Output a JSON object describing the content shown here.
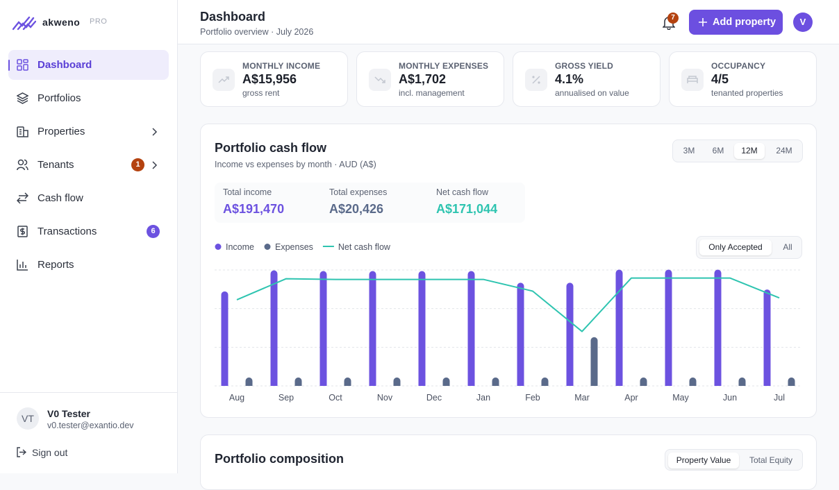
{
  "sidebar": {
    "brand": "akweno",
    "badge": "PRO",
    "nav": [
      {
        "label": "Dashboard"
      },
      {
        "label": "Portfolios"
      },
      {
        "label": "Properties"
      },
      {
        "label": "Tenants",
        "count": 1
      },
      {
        "label": "Cash flow"
      },
      {
        "label": "Transactions",
        "count": 6
      },
      {
        "label": "Reports"
      }
    ],
    "user": {
      "initials": "VT",
      "name": "V0 Tester",
      "email": "v0.tester@exantio.dev"
    },
    "sign_out": "Sign out"
  },
  "header": {
    "title": "Dashboard",
    "subtitle": "Portfolio overview · July 2026",
    "notifications": 7,
    "add_button": "Add property",
    "avatar": "V"
  },
  "stats": [
    {
      "label": "MONTHLY INCOME",
      "value": "A$15,956",
      "note": "gross rent"
    },
    {
      "label": "MONTHLY EXPENSES",
      "value": "A$1,702",
      "note": "incl. management"
    },
    {
      "label": "GROSS YIELD",
      "value": "4.1%",
      "note": "annualised on value"
    },
    {
      "label": "OCCUPANCY",
      "value": "4/5",
      "note": "tenanted properties"
    }
  ],
  "cash_flow": {
    "title": "Portfolio cash flow",
    "subtitle": "Income vs expenses by month · AUD (A$)",
    "ranges": [
      "3M",
      "6M",
      "12M",
      "24M"
    ],
    "totals": [
      {
        "label": "Total income",
        "value": "A$191,470"
      },
      {
        "label": "Total expenses",
        "value": "A$20,426"
      },
      {
        "label": "Net cash flow",
        "value": "A$171,044"
      }
    ],
    "filters": [
      "Only Accepted",
      "All"
    ]
  },
  "chart_data": {
    "type": "bar",
    "categories": [
      "Aug",
      "Sep",
      "Oct",
      "Nov",
      "Dec",
      "Jan",
      "Feb",
      "Mar",
      "Apr",
      "May",
      "Jun",
      "Jul"
    ],
    "series": [
      {
        "name": "Income",
        "color": "#6c52e0",
        "values": [
          13700,
          16750,
          16650,
          16650,
          16650,
          16650,
          14950,
          14950,
          16850,
          16850,
          16850,
          13970
        ]
      },
      {
        "name": "Expenses",
        "color": "#5a6a8a",
        "values": [
          1215,
          1215,
          1215,
          1215,
          1215,
          1215,
          1215,
          7061,
          1215,
          1215,
          1215,
          1215
        ]
      },
      {
        "name": "Net cash flow",
        "color": "#2ec4b0",
        "type": "line",
        "values": [
          12485,
          15535,
          15435,
          15435,
          15435,
          15435,
          13735,
          7889,
          15635,
          15635,
          15635,
          12755
        ]
      }
    ],
    "ylim": [
      0,
      16800
    ],
    "yticks": [
      0,
      5600,
      11200,
      16800
    ],
    "grid": true
  },
  "composition": {
    "title": "Portfolio composition",
    "toggles": [
      "Property Value",
      "Total Equity"
    ]
  }
}
